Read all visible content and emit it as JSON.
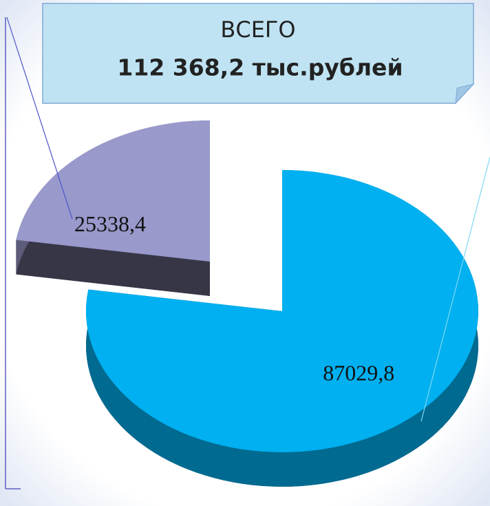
{
  "chart_data": {
    "type": "pie",
    "values": [
      87029.8,
      25338.4
    ],
    "value_labels": [
      "87029,8",
      "25338,4"
    ],
    "colors": [
      "#00b0f0",
      "#9999cc"
    ],
    "annotations": [
      "ВСЕГО",
      "112 368,2 тыс.рублей"
    ]
  }
}
